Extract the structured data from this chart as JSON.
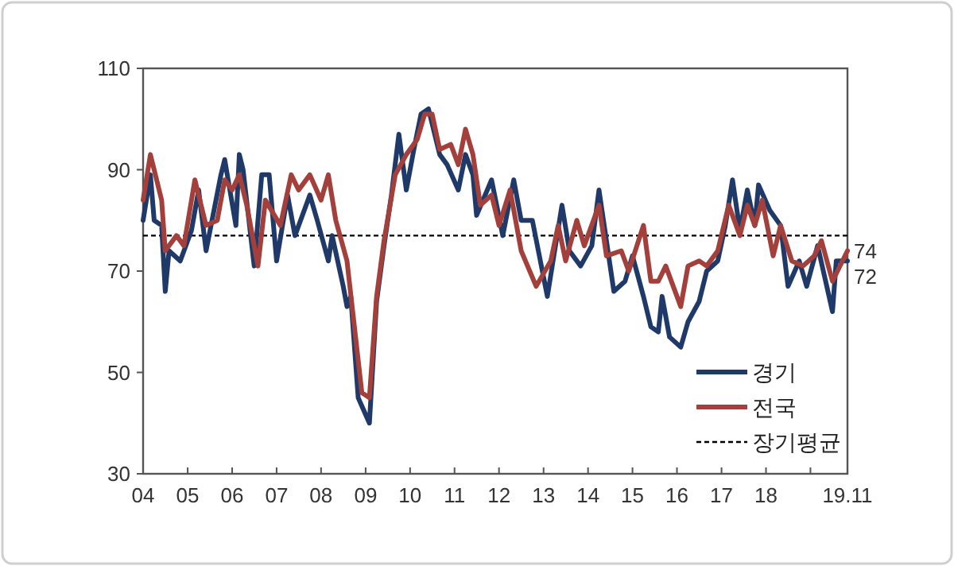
{
  "chart_data": {
    "type": "line",
    "xlim": [
      "2004-01",
      "2019-11"
    ],
    "ylim": [
      30,
      110
    ],
    "yticks": [
      30,
      50,
      70,
      90,
      110
    ],
    "xticks": [
      {
        "value": "2004-01",
        "label": "04"
      },
      {
        "value": "2005-01",
        "label": "05"
      },
      {
        "value": "2006-01",
        "label": "06"
      },
      {
        "value": "2007-01",
        "label": "07"
      },
      {
        "value": "2008-01",
        "label": "08"
      },
      {
        "value": "2009-01",
        "label": "09"
      },
      {
        "value": "2010-01",
        "label": "10"
      },
      {
        "value": "2011-01",
        "label": "11"
      },
      {
        "value": "2012-01",
        "label": "12"
      },
      {
        "value": "2013-01",
        "label": "13"
      },
      {
        "value": "2014-01",
        "label": "14"
      },
      {
        "value": "2015-01",
        "label": "15"
      },
      {
        "value": "2016-01",
        "label": "16"
      },
      {
        "value": "2017-01",
        "label": "17"
      },
      {
        "value": "2018-01",
        "label": "18"
      },
      {
        "value": "2019-01",
        "label": null
      },
      {
        "value": "2019-11",
        "label": "19.11"
      }
    ],
    "grid": false,
    "legend": "bottom right",
    "line_style": "solid",
    "marker": "none",
    "series": [
      {
        "name": "경기",
        "color": "#1f3a68",
        "x": [
          "2004-01",
          "2004-03",
          "2004-04",
          "2004-06",
          "2004-07",
          "2004-08",
          "2004-11",
          "2005-02",
          "2005-04",
          "2005-06",
          "2005-10",
          "2005-11",
          "2006-02",
          "2006-03",
          "2006-04",
          "2006-07",
          "2006-09",
          "2006-11",
          "2007-01",
          "2007-04",
          "2007-06",
          "2007-10",
          "2007-12",
          "2008-03",
          "2008-04",
          "2008-07",
          "2008-08",
          "2008-09",
          "2008-11",
          "2009-02",
          "2009-04",
          "2009-06",
          "2009-08",
          "2009-10",
          "2009-12",
          "2010-02",
          "2010-04",
          "2010-06",
          "2010-09",
          "2010-11",
          "2011-02",
          "2011-04",
          "2011-06",
          "2011-07",
          "2011-11",
          "2012-02",
          "2012-05",
          "2012-07",
          "2012-10",
          "2013-02",
          "2013-06",
          "2013-08",
          "2013-11",
          "2014-02",
          "2014-04",
          "2014-08",
          "2014-11",
          "2015-01",
          "2015-04",
          "2015-06",
          "2015-08",
          "2015-09",
          "2015-11",
          "2016-02",
          "2016-04",
          "2016-07",
          "2016-09",
          "2016-12",
          "2017-02",
          "2017-04",
          "2017-06",
          "2017-08",
          "2017-10",
          "2017-11",
          "2018-02",
          "2018-05",
          "2018-07",
          "2018-10",
          "2018-12",
          "2019-03",
          "2019-07",
          "2019-08",
          "2019-11"
        ],
        "values": [
          80,
          89,
          80,
          79,
          66,
          74,
          72,
          78,
          86,
          74,
          89,
          92,
          79,
          93,
          90,
          71,
          89,
          89,
          72,
          85,
          77,
          85,
          80,
          72,
          77,
          67,
          63,
          65,
          45,
          40,
          64,
          75,
          85,
          97,
          86,
          94,
          101,
          102,
          93,
          91,
          86,
          93,
          89,
          81,
          88,
          77,
          88,
          80,
          80,
          65,
          83,
          74,
          71,
          75,
          86,
          66,
          68,
          73,
          65,
          59,
          58,
          65,
          57,
          55,
          60,
          64,
          70,
          72,
          79,
          88,
          78,
          86,
          79,
          87,
          82,
          79,
          67,
          72,
          67,
          75,
          62,
          72,
          72
        ]
      },
      {
        "name": "전국",
        "color": "#a3403b",
        "x": [
          "2004-01",
          "2004-03",
          "2004-06",
          "2004-07",
          "2004-10",
          "2004-12",
          "2005-03",
          "2005-06",
          "2005-09",
          "2005-11",
          "2006-01",
          "2006-03",
          "2006-05",
          "2006-08",
          "2006-10",
          "2007-02",
          "2007-05",
          "2007-07",
          "2007-10",
          "2008-01",
          "2008-03",
          "2008-05",
          "2008-08",
          "2008-10",
          "2008-12",
          "2009-02",
          "2009-04",
          "2009-06",
          "2009-09",
          "2009-12",
          "2010-03",
          "2010-05",
          "2010-07",
          "2010-09",
          "2010-12",
          "2011-02",
          "2011-04",
          "2011-06",
          "2011-08",
          "2011-11",
          "2012-01",
          "2012-04",
          "2012-07",
          "2012-11",
          "2013-03",
          "2013-05",
          "2013-07",
          "2013-10",
          "2013-12",
          "2014-04",
          "2014-06",
          "2014-10",
          "2014-12",
          "2015-04",
          "2015-06",
          "2015-08",
          "2015-10",
          "2016-02",
          "2016-04",
          "2016-07",
          "2016-09",
          "2016-12",
          "2017-03",
          "2017-06",
          "2017-08",
          "2017-10",
          "2017-12",
          "2018-03",
          "2018-05",
          "2018-08",
          "2018-11",
          "2019-02",
          "2019-04",
          "2019-07",
          "2019-11"
        ],
        "values": [
          84,
          93,
          84,
          74,
          77,
          75,
          88,
          79,
          80,
          88,
          86,
          89,
          83,
          71,
          84,
          79,
          89,
          86,
          89,
          84,
          89,
          80,
          72,
          59,
          46,
          45,
          65,
          76,
          89,
          93,
          96,
          101,
          101,
          94,
          95,
          91,
          98,
          93,
          83,
          85,
          79,
          86,
          74,
          67,
          72,
          79,
          72,
          80,
          75,
          83,
          73,
          74,
          70,
          79,
          68,
          68,
          71,
          63,
          71,
          72,
          71,
          74,
          83,
          77,
          83,
          79,
          84,
          73,
          79,
          72,
          71,
          73,
          76,
          68,
          74
        ]
      }
    ],
    "ref_lines": [
      {
        "axis": "y",
        "value": 77,
        "label": "장기평균",
        "color": "#000000",
        "line_style": "dashed"
      }
    ],
    "annotations": [
      {
        "text": "74",
        "x": "2019-11",
        "y": 74
      },
      {
        "text": "72",
        "x": "2019-11",
        "y": 72
      }
    ]
  }
}
